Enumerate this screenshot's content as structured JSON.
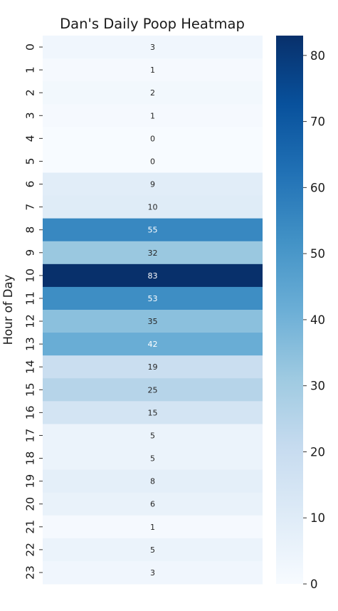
{
  "chart_data": {
    "type": "heatmap",
    "title": "Dan's Daily Poop Heatmap",
    "ylabel": "Hour of Day",
    "xlabel": "",
    "y_categories": [
      "0",
      "1",
      "2",
      "3",
      "4",
      "5",
      "6",
      "7",
      "8",
      "9",
      "10",
      "11",
      "12",
      "13",
      "14",
      "15",
      "16",
      "17",
      "18",
      "19",
      "20",
      "21",
      "22",
      "23"
    ],
    "values": [
      3,
      1,
      2,
      1,
      0,
      0,
      9,
      10,
      55,
      32,
      83,
      53,
      35,
      42,
      19,
      25,
      15,
      5,
      5,
      8,
      6,
      1,
      5,
      3
    ],
    "colormap": "Blues",
    "value_range": [
      0,
      83
    ],
    "colorbar_ticks": [
      "0",
      "10",
      "20",
      "30",
      "40",
      "50",
      "60",
      "70",
      "80"
    ],
    "grid": false,
    "legend": "colorbar-right"
  }
}
